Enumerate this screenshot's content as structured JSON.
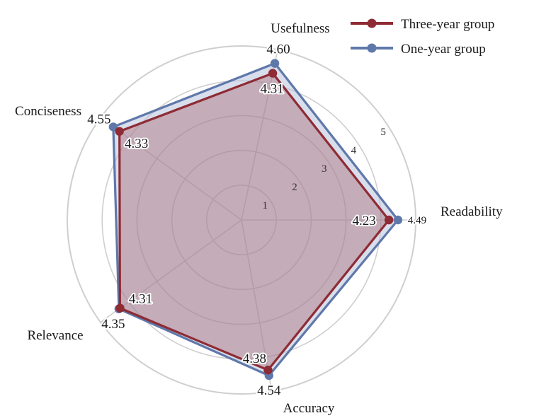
{
  "chart_data": {
    "type": "radar",
    "axes": [
      "Usefulness",
      "Readability",
      "Accuracy",
      "Relevance",
      "Conciseness"
    ],
    "r_ticks": [
      "1",
      "2",
      "3",
      "4",
      "5"
    ],
    "r_max": 5,
    "grid": true,
    "legend_position": "top-right",
    "series": [
      {
        "name": "Three-year group",
        "values": [
          4.31,
          4.23,
          4.38,
          4.31,
          4.33
        ],
        "labels": [
          "4.31",
          "4.23",
          "4.38",
          "4.31",
          "4.33"
        ],
        "color": "#8e2b34",
        "fill": "#8e2b34"
      },
      {
        "name": "One-year group",
        "values": [
          4.6,
          4.49,
          4.54,
          4.35,
          4.55
        ],
        "labels": [
          "4.60",
          "4.49",
          "4.54",
          "4.35",
          "4.55"
        ],
        "color": "#5f78aa",
        "fill": "#b8c3dd"
      }
    ]
  }
}
